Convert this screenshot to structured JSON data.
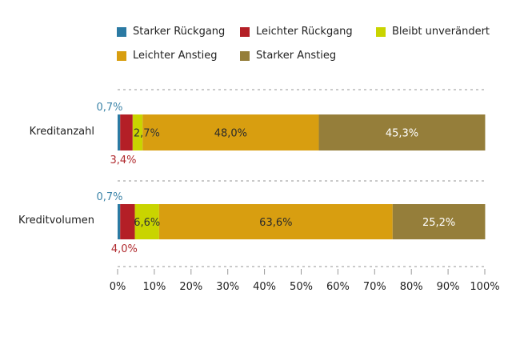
{
  "chart_data": {
    "type": "bar",
    "orientation": "horizontal",
    "stacked": true,
    "title": "",
    "xlabel": "",
    "ylabel": "",
    "xlim": [
      0,
      100
    ],
    "categories": [
      "Kreditanzahl",
      "Kreditvolumen"
    ],
    "series": [
      {
        "name": "Starker Rückgang",
        "color": "#2b7aa3",
        "label_color": "#3c84a8",
        "values": [
          0.7,
          0.7
        ],
        "labels": [
          "0,7%",
          "0,7%"
        ],
        "label_position": "above"
      },
      {
        "name": "Leichter Rückgang",
        "color": "#b41f26",
        "label_color": "#b02a2e",
        "values": [
          3.4,
          4.0
        ],
        "labels": [
          "3,4%",
          "4,0%"
        ],
        "label_position": "below"
      },
      {
        "name": "Bleibt unverändert",
        "color": "#c9d400",
        "label_color": "#333333",
        "values": [
          2.7,
          6.6
        ],
        "labels": [
          "2,7%",
          "6,6%"
        ],
        "label_position": "inside-right"
      },
      {
        "name": "Leichter Anstieg",
        "color": "#d89e10",
        "label_color": "#2a2a2a",
        "values": [
          48.0,
          63.6
        ],
        "labels": [
          "48,0%",
          "63,6%"
        ],
        "label_position": "inside"
      },
      {
        "name": "Starker Anstieg",
        "color": "#957e3a",
        "label_color": "#ffffff",
        "values": [
          45.3,
          25.2
        ],
        "labels": [
          "45,3%",
          "25,2%"
        ],
        "label_position": "inside"
      }
    ],
    "x_ticks": [
      0,
      10,
      20,
      30,
      40,
      50,
      60,
      70,
      80,
      90,
      100
    ],
    "x_tick_labels": [
      "0%",
      "10%",
      "20%",
      "30%",
      "40%",
      "50%",
      "60%",
      "70%",
      "80%",
      "90%",
      "100%"
    ],
    "grid": false,
    "legend_position": "top"
  }
}
